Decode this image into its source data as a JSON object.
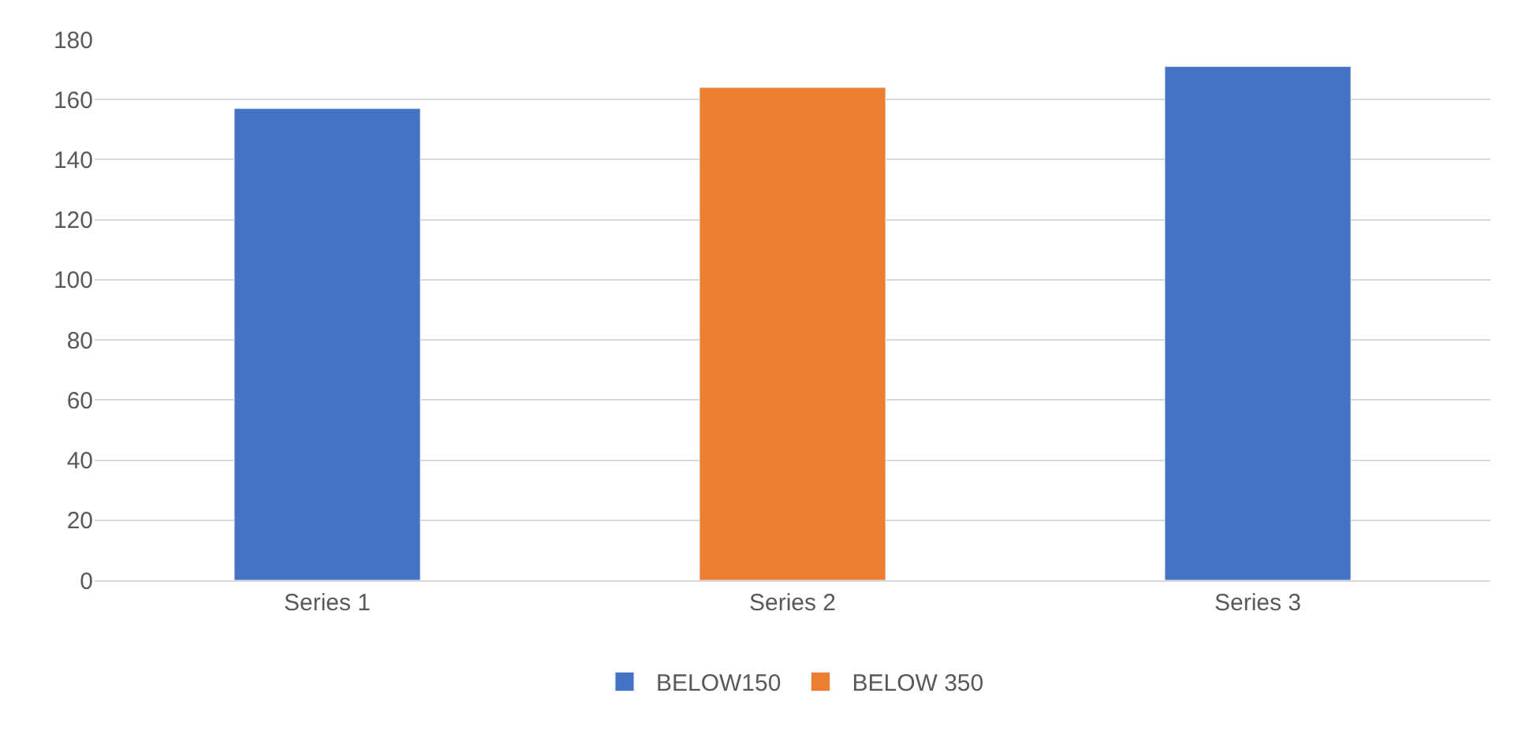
{
  "chart_data": {
    "type": "bar",
    "categories": [
      "Series 1",
      "Series 2",
      "Series 3"
    ],
    "series": [
      {
        "name": "BELOW150",
        "color": "#4472c4",
        "values": [
          157,
          null,
          171
        ]
      },
      {
        "name": "BELOW 350",
        "color": "#ed7d31",
        "values": [
          null,
          164,
          null
        ]
      }
    ],
    "ylim": [
      0,
      180
    ],
    "yticks": [
      0,
      20,
      40,
      60,
      80,
      100,
      120,
      140,
      160,
      180
    ],
    "grid": "y",
    "legend": "bottom"
  }
}
